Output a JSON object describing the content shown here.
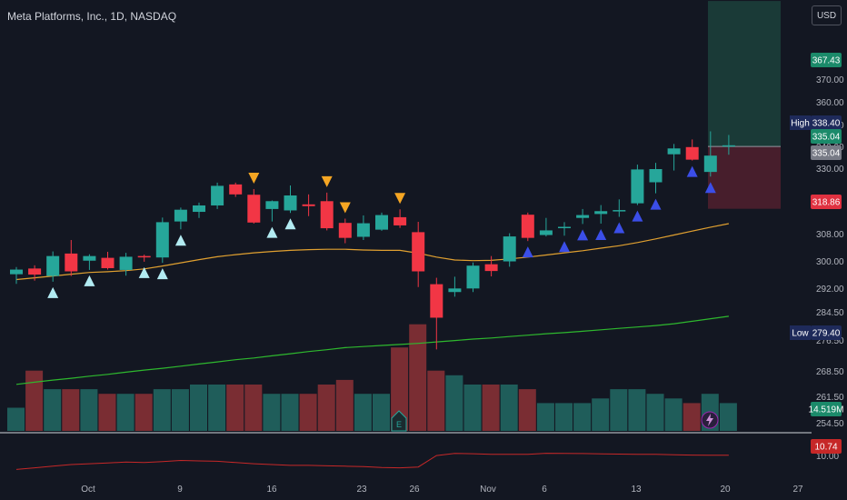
{
  "header": {
    "title": "Meta Platforms, Inc., 1D, NASDAQ",
    "currency": "USD"
  },
  "price_axis": {
    "ticks": [
      "370.00",
      "360.00",
      "350.00",
      "340.00",
      "330.00",
      "308.00",
      "300.00",
      "292.00",
      "284.50",
      "276.50",
      "268.50",
      "261.50",
      "254.50"
    ]
  },
  "x_axis": {
    "ticks": [
      "Oct",
      "9",
      "16",
      "23",
      "26",
      "Nov",
      "6",
      "13",
      "20",
      "27"
    ]
  },
  "labels": {
    "high": {
      "label": "High",
      "value": "338.40"
    },
    "low": {
      "label": "Low",
      "value": "279.40"
    },
    "target": "367.43",
    "current": "335.04",
    "current2": "335.04",
    "stop": "318.86",
    "volume": "14.519M",
    "osc_value": "10.74",
    "osc_tick": "10.00"
  },
  "colors": {
    "up": "#26a69a",
    "down": "#f23645",
    "bg": "#131722",
    "ma_fast": "#e0a030",
    "ma_slow": "#2eb82e",
    "osc": "#c62828"
  },
  "chart_data": {
    "type": "candlestick",
    "title": "Meta Platforms, Inc., 1D, NASDAQ",
    "candles": [
      {
        "o": 300.5,
        "h": 302.5,
        "l": 297.8,
        "c": 301.8
      },
      {
        "o": 302.1,
        "h": 303.0,
        "l": 298.7,
        "c": 300.4
      },
      {
        "o": 300.0,
        "h": 306.9,
        "l": 298.4,
        "c": 305.6
      },
      {
        "o": 306.3,
        "h": 310.1,
        "l": 300.0,
        "c": 301.3
      },
      {
        "o": 304.3,
        "h": 306.1,
        "l": 301.7,
        "c": 305.6
      },
      {
        "o": 305.1,
        "h": 306.8,
        "l": 301.8,
        "c": 302.2
      },
      {
        "o": 301.7,
        "h": 306.5,
        "l": 300.1,
        "c": 305.4
      },
      {
        "o": 305.6,
        "h": 306.0,
        "l": 304.0,
        "c": 305.4
      },
      {
        "o": 305.2,
        "h": 316.4,
        "l": 303.7,
        "c": 315.1
      },
      {
        "o": 315.3,
        "h": 319.2,
        "l": 313.1,
        "c": 318.6
      },
      {
        "o": 318.0,
        "h": 320.6,
        "l": 316.3,
        "c": 319.8
      },
      {
        "o": 319.8,
        "h": 326.2,
        "l": 318.8,
        "c": 325.3
      },
      {
        "o": 325.7,
        "h": 326.2,
        "l": 322.2,
        "c": 322.9
      },
      {
        "o": 322.8,
        "h": 324.4,
        "l": 314.7,
        "c": 315.0
      },
      {
        "o": 318.8,
        "h": 321.2,
        "l": 315.3,
        "c": 321.0
      },
      {
        "o": 318.4,
        "h": 325.4,
        "l": 317.7,
        "c": 322.6
      },
      {
        "o": 320.1,
        "h": 322.9,
        "l": 316.8,
        "c": 319.6
      },
      {
        "o": 321.0,
        "h": 323.4,
        "l": 312.8,
        "c": 313.4
      },
      {
        "o": 314.9,
        "h": 316.1,
        "l": 309.2,
        "c": 310.7
      },
      {
        "o": 311.0,
        "h": 317.0,
        "l": 310.1,
        "c": 314.8
      },
      {
        "o": 313.0,
        "h": 317.8,
        "l": 312.7,
        "c": 317.1
      },
      {
        "o": 316.5,
        "h": 318.7,
        "l": 313.5,
        "c": 314.2
      },
      {
        "o": 312.3,
        "h": 315.2,
        "l": 296.9,
        "c": 301.3
      },
      {
        "o": 297.7,
        "h": 299.5,
        "l": 279.4,
        "c": 288.3
      },
      {
        "o": 295.5,
        "h": 299.8,
        "l": 294.2,
        "c": 296.5
      },
      {
        "o": 296.5,
        "h": 303.8,
        "l": 295.5,
        "c": 302.9
      },
      {
        "o": 303.3,
        "h": 305.6,
        "l": 299.9,
        "c": 301.4
      },
      {
        "o": 304.1,
        "h": 312.0,
        "l": 302.6,
        "c": 311.1
      },
      {
        "o": 317.2,
        "h": 317.8,
        "l": 309.8,
        "c": 310.7
      },
      {
        "o": 311.5,
        "h": 316.3,
        "l": 311.1,
        "c": 312.8
      },
      {
        "o": 313.5,
        "h": 315.1,
        "l": 311.3,
        "c": 313.8
      },
      {
        "o": 316.3,
        "h": 318.8,
        "l": 314.6,
        "c": 317.1
      },
      {
        "o": 317.4,
        "h": 319.9,
        "l": 314.7,
        "c": 318.2
      },
      {
        "o": 318.5,
        "h": 321.5,
        "l": 316.6,
        "c": 318.5
      },
      {
        "o": 320.4,
        "h": 331.0,
        "l": 319.9,
        "c": 329.9
      },
      {
        "o": 326.3,
        "h": 331.4,
        "l": 323.2,
        "c": 330.0
      },
      {
        "o": 333.3,
        "h": 335.6,
        "l": 329.6,
        "c": 334.6
      },
      {
        "o": 334.9,
        "h": 336.6,
        "l": 331.9,
        "c": 332.1
      },
      {
        "o": 329.2,
        "h": 338.4,
        "l": 327.9,
        "c": 333.0
      },
      {
        "o": 335.1,
        "h": 337.6,
        "l": 333.2,
        "c": 335.3
      }
    ],
    "volume": [
      5,
      13,
      9,
      9,
      9,
      8,
      8,
      8,
      9,
      9,
      10,
      10,
      10,
      10,
      8,
      8,
      8,
      10,
      11,
      8,
      8,
      18,
      23,
      13,
      12,
      10,
      10,
      10,
      9,
      6,
      6,
      6,
      7,
      9,
      9,
      8,
      7,
      6,
      8,
      6
    ],
    "volume_unit": "relative",
    "ma_fast": [
      299,
      299.5,
      300,
      300.5,
      301,
      301.2,
      301.5,
      302,
      302.8,
      303.7,
      304.6,
      305.4,
      306,
      306.5,
      306.9,
      307.2,
      307.4,
      307.5,
      307.5,
      307.3,
      307.2,
      307.2,
      306.4,
      305.3,
      304.5,
      304.3,
      304.4,
      304.8,
      305.3,
      305.9,
      306.5,
      307.1,
      307.8,
      308.5,
      309.4,
      310.4,
      311.5,
      312.6,
      313.7,
      314.7
    ],
    "ma_slow": [
      269.6,
      270.2,
      270.8,
      271.3,
      271.9,
      272.4,
      273,
      273.6,
      274.1,
      274.7,
      275.3,
      275.9,
      276.5,
      277,
      277.6,
      278.2,
      278.8,
      279.3,
      279.9,
      280.2,
      280.5,
      280.8,
      281.1,
      281.5,
      281.9,
      282.3,
      282.6,
      283,
      283.4,
      283.8,
      284.1,
      284.5,
      284.9,
      285.3,
      285.7,
      286.1,
      286.6,
      287.3,
      288,
      288.7
    ],
    "buy_signals": [
      2,
      4,
      7,
      8,
      9,
      14,
      15,
      28,
      30,
      31,
      32,
      33,
      34,
      35,
      37,
      38
    ],
    "sell_signals": [
      13,
      17,
      18,
      21
    ],
    "position": {
      "entry": 335.04,
      "target": 367.43,
      "stop": 318.86
    },
    "oscillator": [
      2,
      3,
      4,
      5,
      5.5,
      6,
      6.5,
      6.2,
      6.8,
      7.5,
      7.2,
      7.0,
      6.2,
      5.5,
      5.0,
      4.5,
      4.5,
      4.2,
      4.0,
      3.8,
      3.2,
      3.0,
      3.5,
      10.5,
      11.8,
      11.6,
      11.2,
      11.2,
      11.3,
      11.9,
      11.8,
      11.7,
      11.5,
      11.4,
      11.2,
      11.2,
      11.0,
      10.8,
      10.7,
      10.74
    ]
  }
}
